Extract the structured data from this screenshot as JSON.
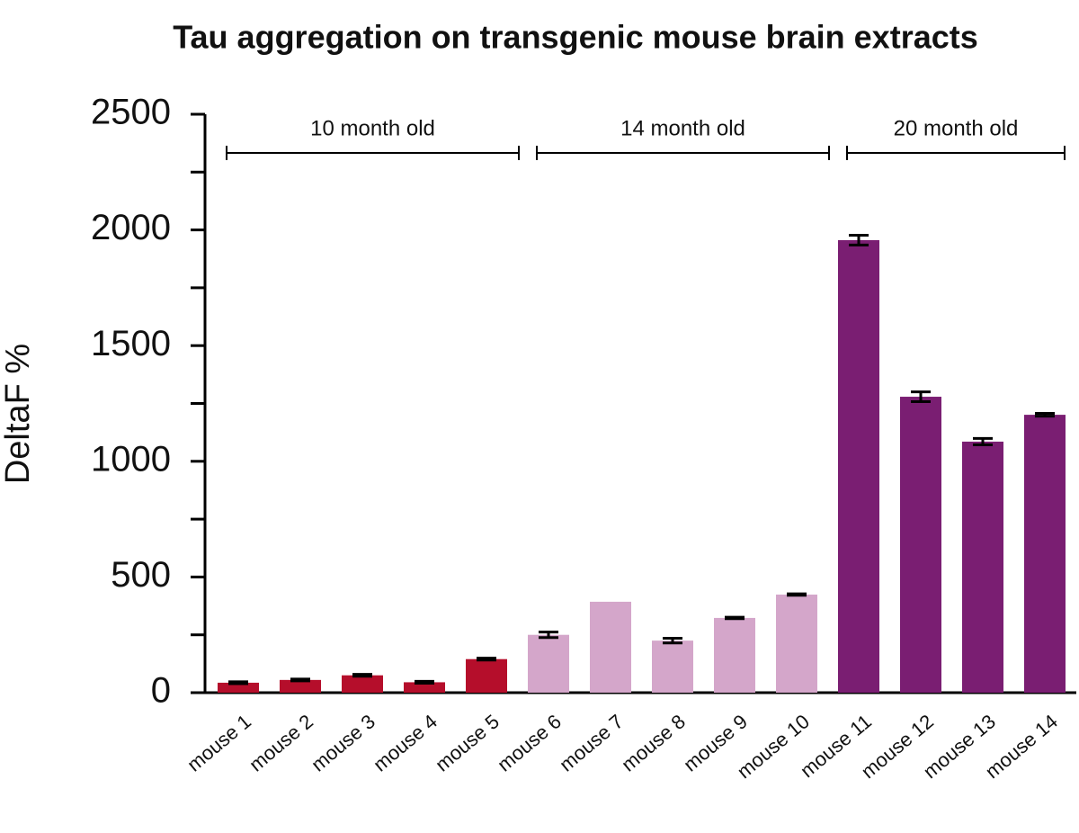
{
  "chart_data": {
    "type": "bar",
    "title": "Tau aggregation on transgenic mouse brain extracts",
    "y_label": "DeltaF %",
    "categories": [
      "mouse 1",
      "mouse 2",
      "mouse 3",
      "mouse 4",
      "mouse 5",
      "mouse 6",
      "mouse 7",
      "mouse 8",
      "mouse 9",
      "mouse 10",
      "mouse 11",
      "mouse 12",
      "mouse 13",
      "mouse 14"
    ],
    "values": [
      43,
      55,
      75,
      45,
      145,
      250,
      393,
      225,
      323,
      424,
      1956,
      1279,
      1085,
      1201
    ],
    "errors": [
      4,
      4,
      4,
      4,
      4,
      12,
      null,
      10,
      3,
      3,
      21,
      21,
      14,
      6
    ],
    "colors": [
      "#b50e2b",
      "#b50e2b",
      "#b50e2b",
      "#b50e2b",
      "#b50e2b",
      "#d4a6ca",
      "#d4a6ca",
      "#d4a6ca",
      "#d4a6ca",
      "#d4a6ca",
      "#7a1e72",
      "#7a1e72",
      "#7a1e72",
      "#7a1e72"
    ],
    "groups": [
      {
        "label": "10 month old",
        "first": 0,
        "last": 4
      },
      {
        "label": "14 month old",
        "first": 5,
        "last": 9
      },
      {
        "label": "20 month old",
        "first": 10,
        "last": 13
      }
    ],
    "ylim": [
      0,
      2500
    ],
    "yticks": [
      0,
      500,
      1000,
      1500,
      2000,
      2500
    ],
    "minor_yticks": [
      250,
      750,
      1250,
      1750,
      2250
    ]
  }
}
